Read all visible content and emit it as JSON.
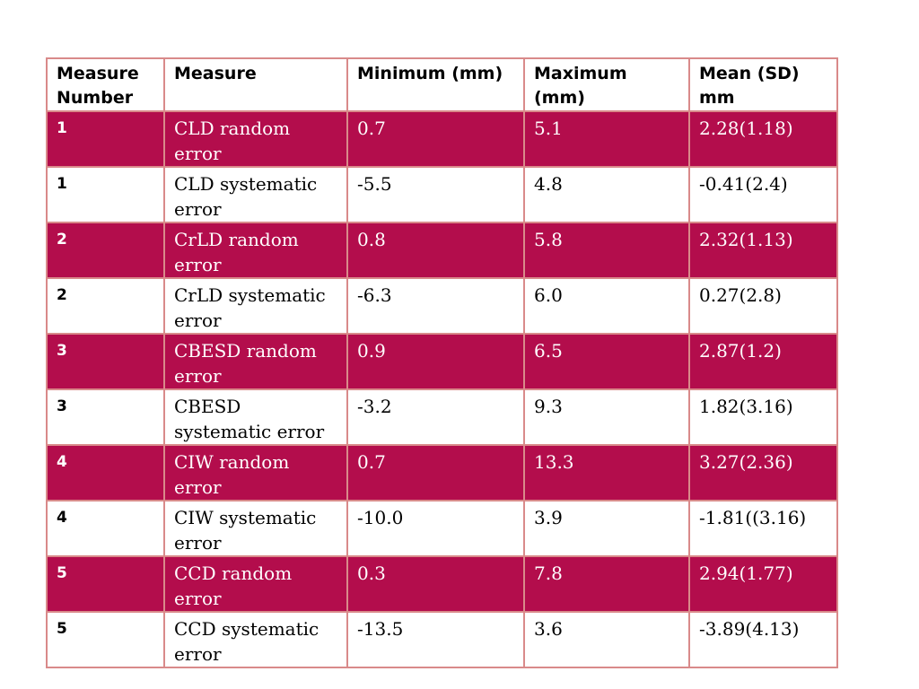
{
  "table": {
    "headers": [
      "Measure Number",
      "Measure",
      "Minimum (mm)",
      "Maximum (mm)",
      "Mean (SD) mm"
    ],
    "rows": [
      {
        "number": "1",
        "measure": "CLD random error",
        "min": "0.7",
        "max": "5.1",
        "mean_sd": "2.28(1.18)"
      },
      {
        "number": "1",
        "measure": "CLD systematic error",
        "min": "-5.5",
        "max": "4.8",
        "mean_sd": "-0.41(2.4)"
      },
      {
        "number": "2",
        "measure": "CrLD random error",
        "min": "0.8",
        "max": "5.8",
        "mean_sd": "2.32(1.13)"
      },
      {
        "number": "2",
        "measure": "CrLD systematic error",
        "min": "-6.3",
        "max": "6.0",
        "mean_sd": "0.27(2.8)"
      },
      {
        "number": "3",
        "measure": "CBESD random error",
        "min": "0.9",
        "max": "6.5",
        "mean_sd": "2.87(1.2)"
      },
      {
        "number": "3",
        "measure": "CBESD systematic error",
        "min": "-3.2",
        "max": "9.3",
        "mean_sd": "1.82(3.16)"
      },
      {
        "number": "4",
        "measure": "CIW random error",
        "min": "0.7",
        "max": "13.3",
        "mean_sd": "3.27(2.36)"
      },
      {
        "number": "4",
        "measure": "CIW systematic error",
        "min": "-10.0",
        "max": "3.9",
        "mean_sd": "-1.81((3.16)"
      },
      {
        "number": "5",
        "measure": "CCD random error",
        "min": "0.3",
        "max": "7.8",
        "mean_sd": "2.94(1.77)"
      },
      {
        "number": "5",
        "measure": "CCD systematic error",
        "min": "-13.5",
        "max": "3.6",
        "mean_sd": "-3.89(4.13)"
      }
    ]
  },
  "colors": {
    "shaded_row": "#b30d4c",
    "border": "#d98a8a"
  }
}
